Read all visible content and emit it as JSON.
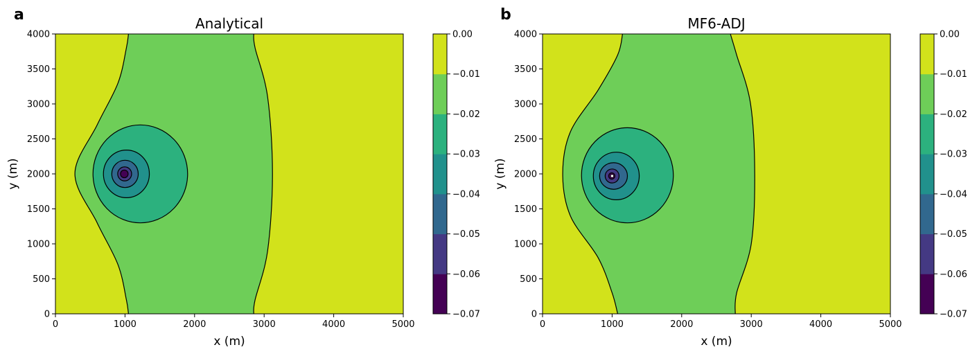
{
  "chart_data": [
    {
      "type": "contourf",
      "panel_label": "a",
      "title": "Analytical",
      "xlabel": "x (m)",
      "ylabel": "y (m)",
      "xlim": [
        0,
        5000
      ],
      "ylim": [
        0,
        4000
      ],
      "x_ticks": [
        0,
        1000,
        2000,
        3000,
        4000,
        5000
      ],
      "y_ticks": [
        0,
        500,
        1000,
        1500,
        2000,
        2500,
        3000,
        3500,
        4000
      ],
      "levels": [
        -0.07,
        -0.06,
        -0.05,
        -0.04,
        -0.03,
        -0.02,
        -0.01,
        0.0
      ],
      "colorbar_ticks": [
        "0.00",
        "−0.01",
        "−0.02",
        "−0.03",
        "−0.04",
        "−0.05",
        "−0.06",
        "−0.07"
      ],
      "level_colors": [
        "#440154",
        "#443983",
        "#31688e",
        "#21918c",
        "#2cb17e",
        "#6ece58",
        "#d2e21b"
      ],
      "well_location": [
        1000,
        2000
      ],
      "region_boundaries": {
        "left_boundary_-0.01": [
          [
            1050,
            0
          ],
          [
            1020,
            200
          ],
          [
            900,
            700
          ],
          [
            600,
            1300
          ],
          [
            280,
            2000
          ],
          [
            600,
            2700
          ],
          [
            900,
            3300
          ],
          [
            1020,
            3800
          ],
          [
            1050,
            4000
          ]
        ],
        "right_boundary_-0.01": [
          [
            2850,
            0
          ],
          [
            2870,
            200
          ],
          [
            3050,
            900
          ],
          [
            3120,
            2000
          ],
          [
            3050,
            3100
          ],
          [
            2870,
            3800
          ],
          [
            2850,
            4000
          ]
        ],
        "circle_-0.02": {
          "center": [
            1220,
            2000
          ],
          "radius_x": 680,
          "radius_y": 700
        },
        "circle_-0.03": {
          "center": [
            1020,
            2000
          ],
          "radius_x": 330,
          "radius_y": 340
        },
        "circle_-0.04": {
          "center": [
            1000,
            2000
          ],
          "radius_x": 190,
          "radius_y": 195
        },
        "circle_-0.05": {
          "center": [
            995,
            2000
          ],
          "radius_x": 100,
          "radius_y": 100
        },
        "circle_-0.06": {
          "center": [
            990,
            2000
          ],
          "radius_x": 55,
          "radius_y": 55
        }
      }
    },
    {
      "type": "contourf",
      "panel_label": "b",
      "title": "MF6-ADJ",
      "xlabel": "x (m)",
      "ylabel": "y (m)",
      "xlim": [
        0,
        5000
      ],
      "ylim": [
        0,
        4000
      ],
      "x_ticks": [
        0,
        1000,
        2000,
        3000,
        4000,
        5000
      ],
      "y_ticks": [
        0,
        500,
        1000,
        1500,
        2000,
        2500,
        3000,
        3500,
        4000
      ],
      "levels": [
        -0.07,
        -0.06,
        -0.05,
        -0.04,
        -0.03,
        -0.02,
        -0.01,
        0.0
      ],
      "colorbar_ticks": [
        "0.00",
        "−0.01",
        "−0.02",
        "−0.03",
        "−0.04",
        "−0.05",
        "−0.06",
        "−0.07"
      ],
      "level_colors": [
        "#440154",
        "#443983",
        "#31688e",
        "#21918c",
        "#2cb17e",
        "#6ece58",
        "#d2e21b"
      ],
      "well_location": [
        1000,
        1970
      ],
      "region_boundaries": {
        "left_boundary_-0.01": [
          [
            1080,
            0
          ],
          [
            1000,
            300
          ],
          [
            800,
            800
          ],
          [
            400,
            1400
          ],
          [
            290,
            2000
          ],
          [
            400,
            2600
          ],
          [
            800,
            3200
          ],
          [
            1080,
            3700
          ],
          [
            1150,
            4000
          ]
        ],
        "right_boundary_-0.01": [
          [
            2770,
            0
          ],
          [
            2790,
            300
          ],
          [
            3000,
            1000
          ],
          [
            3050,
            2000
          ],
          [
            2990,
            3000
          ],
          [
            2790,
            3700
          ],
          [
            2700,
            4000
          ]
        ],
        "circle_-0.02": {
          "center": [
            1220,
            1980
          ],
          "radius_x": 660,
          "radius_y": 680
        },
        "circle_-0.03": {
          "center": [
            1060,
            1970
          ],
          "radius_x": 330,
          "radius_y": 340
        },
        "circle_-0.04": {
          "center": [
            1020,
            1970
          ],
          "radius_x": 200,
          "radius_y": 190
        },
        "circle_-0.05": {
          "center": [
            1000,
            1970
          ],
          "radius_x": 100,
          "radius_y": 100
        },
        "circle_-0.06": {
          "center": [
            995,
            1970
          ],
          "radius_x": 45,
          "radius_y": 45
        }
      }
    }
  ]
}
